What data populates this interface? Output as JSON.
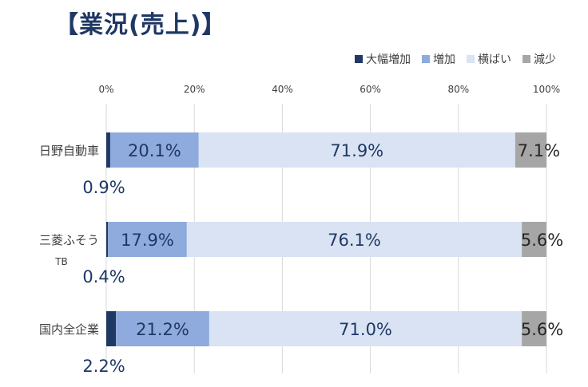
{
  "chart_data": {
    "type": "bar",
    "orientation": "horizontal",
    "stacked": true,
    "title": "【業況(売上)】",
    "categories": [
      "日野自動車",
      "三菱ふそう\nTB",
      "国内全企業"
    ],
    "series": [
      {
        "name": "大幅増加",
        "color": "#1f3864",
        "values": [
          0.9,
          0.4,
          2.2
        ]
      },
      {
        "name": "増加",
        "color": "#8faadc",
        "values": [
          20.1,
          17.9,
          21.2
        ]
      },
      {
        "name": "横ばい",
        "color": "#dae3f3",
        "values": [
          71.9,
          76.1,
          71.0
        ]
      },
      {
        "name": "減少",
        "color": "#a6a6a6",
        "values": [
          7.1,
          5.6,
          5.6
        ]
      }
    ],
    "data_labels": [
      [
        "0.9%",
        "20.1%",
        "71.9%",
        "7.1%"
      ],
      [
        "0.4%",
        "17.9%",
        "76.1%",
        "5.6%"
      ],
      [
        "2.2%",
        "21.2%",
        "71.0%",
        "5.6%"
      ]
    ],
    "xlim": [
      0,
      100
    ],
    "xticks": [
      "0%",
      "20%",
      "40%",
      "60%",
      "80%",
      "100%"
    ],
    "grid": true,
    "legend_position": "top-right"
  }
}
